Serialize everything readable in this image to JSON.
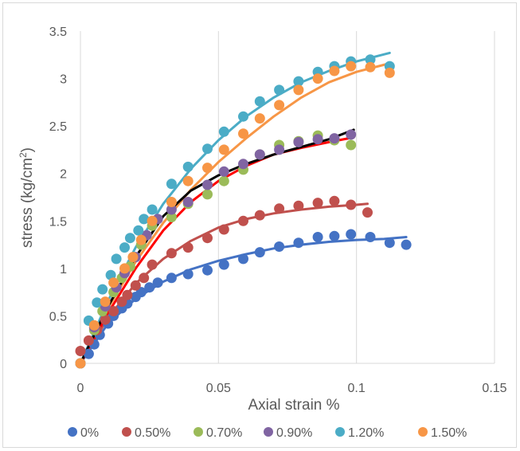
{
  "chart_data": {
    "type": "scatter",
    "xlabel": "Axial strain %",
    "ylabel_main": "stress (kg/cm",
    "ylabel_sup": "2",
    "ylabel_close": ")",
    "xlim": [
      0,
      0.15
    ],
    "ylim": [
      0,
      3.5
    ],
    "xticks": [
      0,
      0.05,
      0.1,
      0.15
    ],
    "xtick_labels": [
      "0",
      "0.05",
      "0.1",
      "0.15"
    ],
    "yticks": [
      0,
      0.5,
      1,
      1.5,
      2,
      2.5,
      3,
      3.5
    ],
    "ytick_labels": [
      "0",
      "0.5",
      "1",
      "1.5",
      "2",
      "2.5",
      "3",
      "3.5"
    ],
    "grid": {
      "x": true,
      "y": false
    },
    "legend_position": "bottom",
    "series": [
      {
        "name": "0%",
        "color": "#4472c4",
        "points": [
          [
            0,
            0
          ],
          [
            0.003,
            0.1
          ],
          [
            0.005,
            0.2
          ],
          [
            0.007,
            0.3
          ],
          [
            0.01,
            0.42
          ],
          [
            0.012,
            0.5
          ],
          [
            0.015,
            0.58
          ],
          [
            0.017,
            0.63
          ],
          [
            0.02,
            0.7
          ],
          [
            0.022,
            0.75
          ],
          [
            0.025,
            0.8
          ],
          [
            0.028,
            0.85
          ],
          [
            0.033,
            0.9
          ],
          [
            0.039,
            0.94
          ],
          [
            0.046,
            0.98
          ],
          [
            0.052,
            1.04
          ],
          [
            0.059,
            1.1
          ],
          [
            0.065,
            1.17
          ],
          [
            0.072,
            1.23
          ],
          [
            0.079,
            1.27
          ],
          [
            0.086,
            1.33
          ],
          [
            0.092,
            1.34
          ],
          [
            0.098,
            1.36
          ],
          [
            0.105,
            1.33
          ],
          [
            0.112,
            1.27
          ],
          [
            0.118,
            1.25
          ]
        ],
        "fit": [
          [
            0,
            0
          ],
          [
            0.01,
            0.42
          ],
          [
            0.02,
            0.68
          ],
          [
            0.03,
            0.86
          ],
          [
            0.04,
            0.99
          ],
          [
            0.05,
            1.08
          ],
          [
            0.06,
            1.15
          ],
          [
            0.07,
            1.21
          ],
          [
            0.08,
            1.25
          ],
          [
            0.09,
            1.28
          ],
          [
            0.1,
            1.3
          ],
          [
            0.11,
            1.31
          ],
          [
            0.118,
            1.33
          ]
        ]
      },
      {
        "name": "0.50%",
        "color": "#c0504d",
        "points": [
          [
            0,
            0
          ],
          [
            0,
            0.13
          ],
          [
            0.003,
            0.24
          ],
          [
            0.006,
            0.35
          ],
          [
            0.009,
            0.46
          ],
          [
            0.012,
            0.55
          ],
          [
            0.015,
            0.65
          ],
          [
            0.017,
            0.72
          ],
          [
            0.02,
            0.82
          ],
          [
            0.023,
            0.9
          ],
          [
            0.026,
            1.04
          ],
          [
            0.033,
            1.16
          ],
          [
            0.039,
            1.22
          ],
          [
            0.046,
            1.32
          ],
          [
            0.052,
            1.41
          ],
          [
            0.059,
            1.5
          ],
          [
            0.065,
            1.56
          ],
          [
            0.072,
            1.63
          ],
          [
            0.079,
            1.66
          ],
          [
            0.086,
            1.69
          ],
          [
            0.092,
            1.71
          ],
          [
            0.098,
            1.67
          ],
          [
            0.104,
            1.59
          ]
        ],
        "fit": [
          [
            0,
            0
          ],
          [
            0.01,
            0.48
          ],
          [
            0.02,
            0.84
          ],
          [
            0.03,
            1.1
          ],
          [
            0.04,
            1.29
          ],
          [
            0.05,
            1.43
          ],
          [
            0.06,
            1.52
          ],
          [
            0.07,
            1.58
          ],
          [
            0.08,
            1.62
          ],
          [
            0.09,
            1.65
          ],
          [
            0.1,
            1.67
          ],
          [
            0.104,
            1.68
          ]
        ]
      },
      {
        "name": "0.70%",
        "color": "#9bbb59",
        "points": [
          [
            0,
            0
          ],
          [
            0.005,
            0.35
          ],
          [
            0.008,
            0.55
          ],
          [
            0.012,
            0.75
          ],
          [
            0.015,
            0.9
          ],
          [
            0.018,
            1.02
          ],
          [
            0.022,
            1.25
          ],
          [
            0.026,
            1.45
          ],
          [
            0.033,
            1.54
          ],
          [
            0.039,
            1.68
          ],
          [
            0.046,
            1.78
          ],
          [
            0.052,
            1.92
          ],
          [
            0.059,
            2.04
          ],
          [
            0.065,
            2.2
          ],
          [
            0.072,
            2.3
          ],
          [
            0.079,
            2.34
          ],
          [
            0.086,
            2.4
          ],
          [
            0.092,
            2.35
          ],
          [
            0.098,
            2.3
          ]
        ]
      },
      {
        "name": "0.90%",
        "color": "#8064a2",
        "points": [
          [
            0,
            0
          ],
          [
            0.005,
            0.38
          ],
          [
            0.009,
            0.6
          ],
          [
            0.013,
            0.8
          ],
          [
            0.016,
            0.95
          ],
          [
            0.02,
            1.12
          ],
          [
            0.024,
            1.35
          ],
          [
            0.028,
            1.52
          ],
          [
            0.033,
            1.62
          ],
          [
            0.039,
            1.7
          ],
          [
            0.046,
            1.88
          ],
          [
            0.052,
            2.02
          ],
          [
            0.059,
            2.1
          ],
          [
            0.065,
            2.2
          ],
          [
            0.072,
            2.25
          ],
          [
            0.079,
            2.33
          ],
          [
            0.086,
            2.36
          ],
          [
            0.092,
            2.37
          ],
          [
            0.098,
            2.41
          ]
        ]
      },
      {
        "name": "1.20%",
        "color": "#4bacc6",
        "points": [
          [
            0,
            0
          ],
          [
            0.003,
            0.45
          ],
          [
            0.006,
            0.64
          ],
          [
            0.008,
            0.78
          ],
          [
            0.011,
            0.93
          ],
          [
            0.013,
            1.1
          ],
          [
            0.016,
            1.22
          ],
          [
            0.018,
            1.32
          ],
          [
            0.021,
            1.4
          ],
          [
            0.023,
            1.52
          ],
          [
            0.026,
            1.62
          ],
          [
            0.033,
            1.89
          ],
          [
            0.039,
            2.07
          ],
          [
            0.046,
            2.26
          ],
          [
            0.052,
            2.44
          ],
          [
            0.059,
            2.6
          ],
          [
            0.065,
            2.76
          ],
          [
            0.072,
            2.88
          ],
          [
            0.079,
            2.97
          ],
          [
            0.086,
            3.07
          ],
          [
            0.092,
            3.13
          ],
          [
            0.098,
            3.18
          ],
          [
            0.105,
            3.2
          ],
          [
            0.112,
            3.13
          ]
        ],
        "fit": [
          [
            0,
            0
          ],
          [
            0.01,
            0.66
          ],
          [
            0.02,
            1.22
          ],
          [
            0.03,
            1.68
          ],
          [
            0.04,
            2.05
          ],
          [
            0.05,
            2.35
          ],
          [
            0.06,
            2.6
          ],
          [
            0.07,
            2.8
          ],
          [
            0.08,
            2.96
          ],
          [
            0.09,
            3.08
          ],
          [
            0.1,
            3.18
          ],
          [
            0.112,
            3.27
          ]
        ]
      },
      {
        "name": "1.50%",
        "color": "#f79646",
        "points": [
          [
            0,
            0
          ],
          [
            0.005,
            0.4
          ],
          [
            0.009,
            0.65
          ],
          [
            0.012,
            0.85
          ],
          [
            0.016,
            1.0
          ],
          [
            0.019,
            1.12
          ],
          [
            0.022,
            1.3
          ],
          [
            0.026,
            1.5
          ],
          [
            0.033,
            1.7
          ],
          [
            0.039,
            1.92
          ],
          [
            0.046,
            2.06
          ],
          [
            0.052,
            2.25
          ],
          [
            0.059,
            2.42
          ],
          [
            0.065,
            2.58
          ],
          [
            0.072,
            2.72
          ],
          [
            0.079,
            2.88
          ],
          [
            0.086,
            3.0
          ],
          [
            0.092,
            3.08
          ],
          [
            0.098,
            3.13
          ],
          [
            0.105,
            3.12
          ],
          [
            0.112,
            3.06
          ]
        ],
        "fit": [
          [
            0,
            0
          ],
          [
            0.01,
            0.58
          ],
          [
            0.02,
            1.07
          ],
          [
            0.03,
            1.48
          ],
          [
            0.04,
            1.83
          ],
          [
            0.05,
            2.12
          ],
          [
            0.06,
            2.37
          ],
          [
            0.07,
            2.6
          ],
          [
            0.08,
            2.8
          ],
          [
            0.09,
            2.96
          ],
          [
            0.1,
            3.07
          ],
          [
            0.112,
            3.16
          ]
        ]
      }
    ],
    "extra_fits": [
      {
        "color": "#ff0000",
        "points": [
          [
            0,
            0
          ],
          [
            0.01,
            0.53
          ],
          [
            0.02,
            1.0
          ],
          [
            0.03,
            1.4
          ],
          [
            0.04,
            1.7
          ],
          [
            0.05,
            1.92
          ],
          [
            0.06,
            2.08
          ],
          [
            0.07,
            2.2
          ],
          [
            0.08,
            2.27
          ],
          [
            0.09,
            2.33
          ],
          [
            0.099,
            2.38
          ]
        ]
      },
      {
        "color": "#000000",
        "points": [
          [
            0,
            0
          ],
          [
            0.01,
            0.6
          ],
          [
            0.02,
            1.12
          ],
          [
            0.03,
            1.55
          ],
          [
            0.04,
            1.82
          ],
          [
            0.05,
            1.98
          ],
          [
            0.06,
            2.1
          ],
          [
            0.07,
            2.2
          ],
          [
            0.08,
            2.28
          ],
          [
            0.09,
            2.36
          ],
          [
            0.099,
            2.46
          ]
        ]
      }
    ]
  }
}
